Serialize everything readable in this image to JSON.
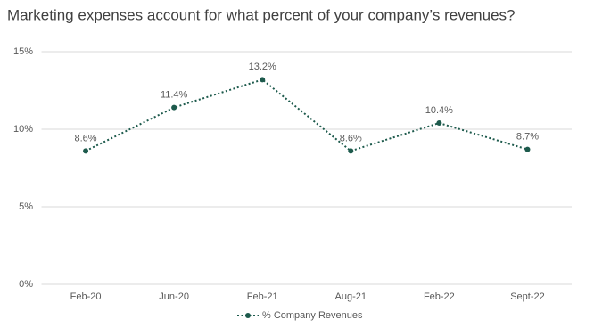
{
  "chart_data": {
    "type": "line",
    "title": "Marketing expenses account for what percent of your company’s revenues?",
    "categories": [
      "Feb-20",
      "Jun-20",
      "Feb-21",
      "Aug-21",
      "Feb-22",
      "Sept-22"
    ],
    "series": [
      {
        "name": "% Company Revenues",
        "color": "#1d5a4c",
        "values": [
          8.6,
          11.4,
          13.2,
          8.6,
          10.4,
          8.7
        ],
        "value_labels": [
          "8.6%",
          "11.4%",
          "13.2%",
          "8.6%",
          "10.4%",
          "8.7%"
        ]
      }
    ],
    "ylim": [
      0,
      15
    ],
    "yticks": [
      {
        "value": 0,
        "label": "0%"
      },
      {
        "value": 5,
        "label": "5%"
      },
      {
        "value": 10,
        "label": "10%"
      },
      {
        "value": 15,
        "label": "15%"
      }
    ],
    "grid": true,
    "legend": "bottom"
  }
}
